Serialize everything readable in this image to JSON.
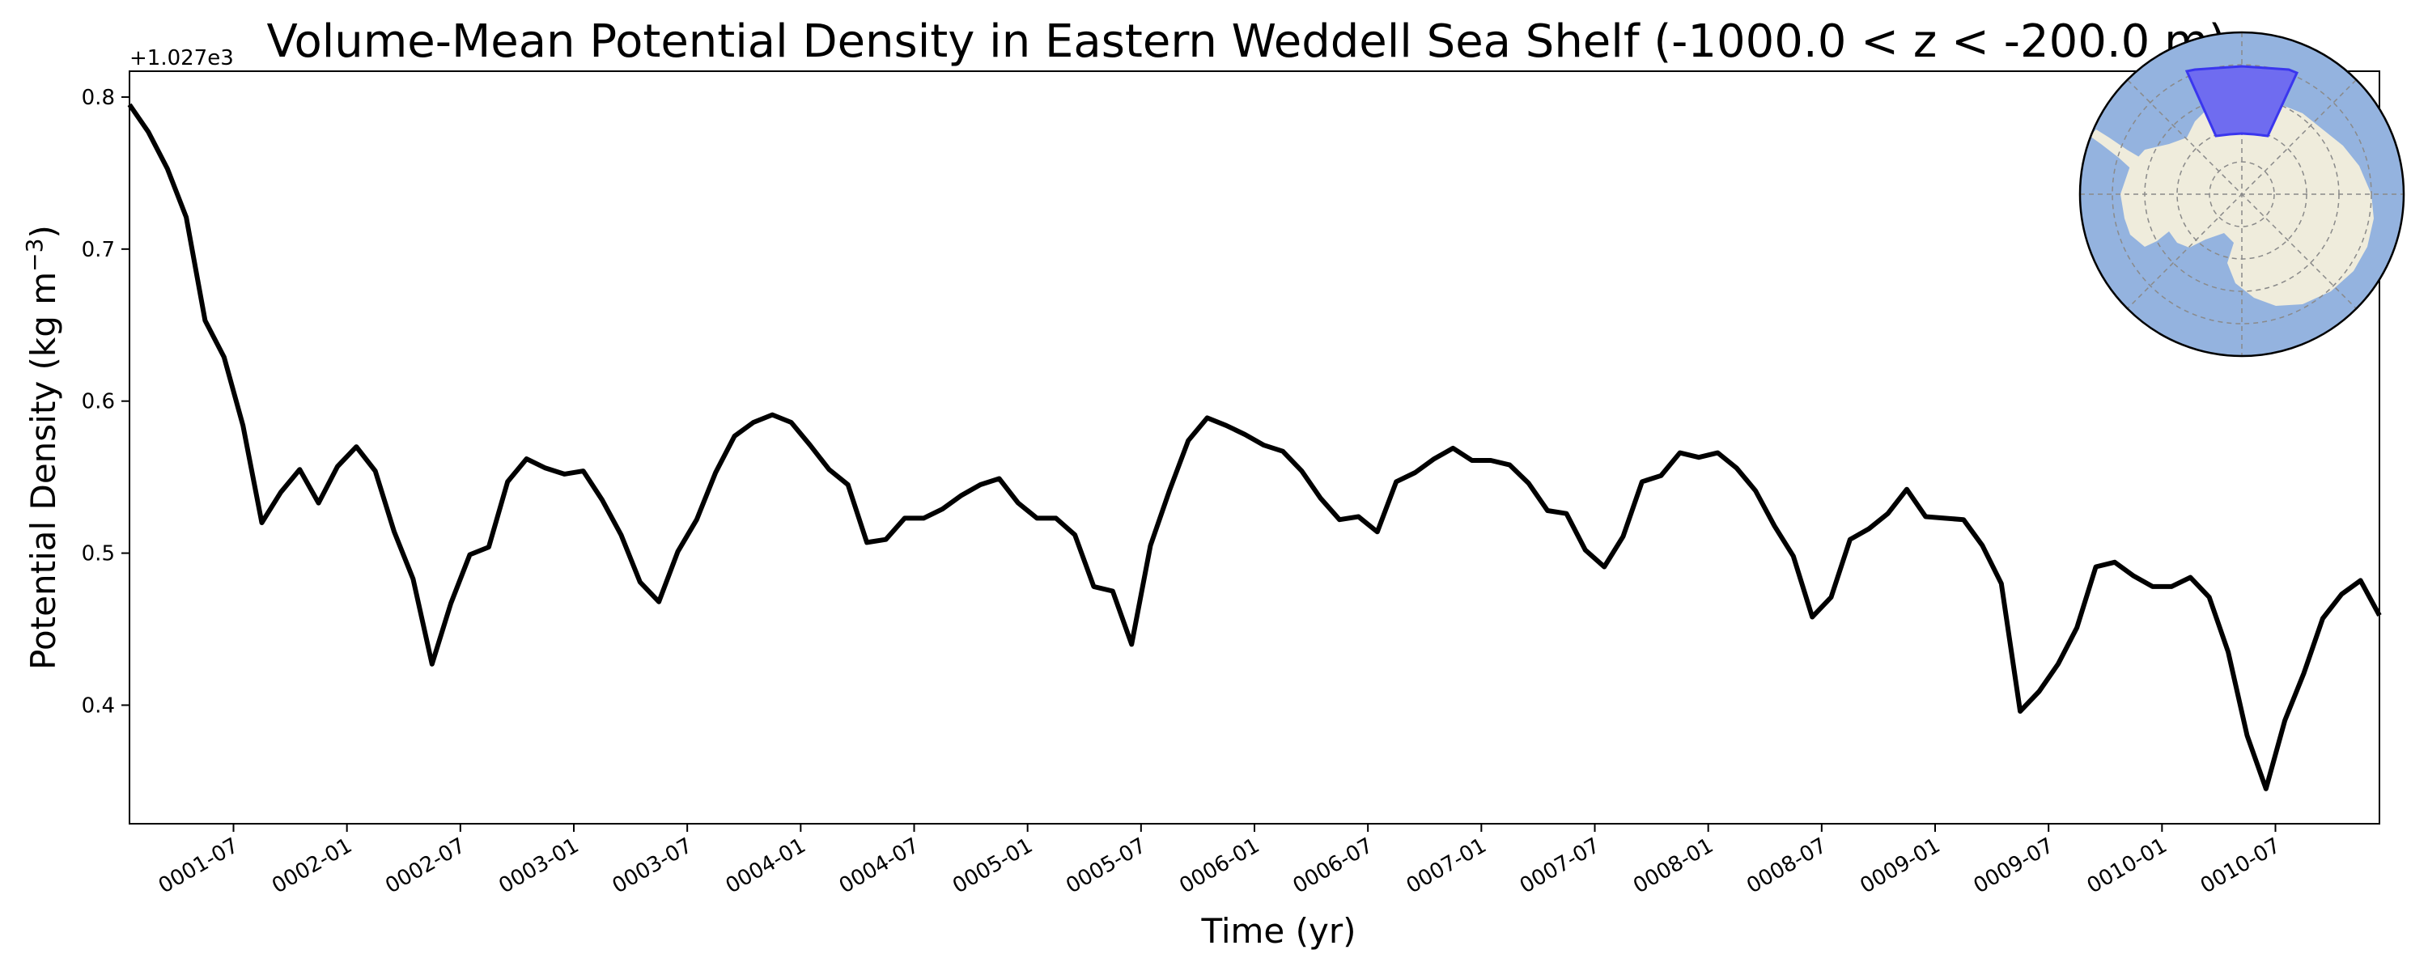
{
  "chart_data": {
    "type": "line",
    "title": "Volume-Mean Potential Density in Eastern Weddell Sea Shelf (-1000.0 < z < -200.0 m)",
    "xlabel": "Time (yr)",
    "ylabel": "Potential Density (kg m",
    "ylabel_sup": "−3",
    "ylabel_close": ")",
    "y_offset_label": "+1.027e3",
    "ylim": [
      0.322,
      0.817
    ],
    "y_ticks": [
      0.4,
      0.5,
      0.6,
      0.7,
      0.8
    ],
    "y_tick_labels": [
      "0.4",
      "0.5",
      "0.6",
      "0.7",
      "0.8"
    ],
    "x_range_months": [
      0.0,
      119.0
    ],
    "x_ticks": [
      5.5,
      11.5,
      17.5,
      23.5,
      29.5,
      35.5,
      41.5,
      47.5,
      53.5,
      59.5,
      65.5,
      71.5,
      77.5,
      83.5,
      89.5,
      95.5,
      101.5,
      107.5,
      113.5
    ],
    "x_tick_labels": [
      "0001-07",
      "0002-01",
      "0002-07",
      "0003-01",
      "0003-07",
      "0004-01",
      "0004-07",
      "0005-01",
      "0005-07",
      "0006-01",
      "0006-07",
      "0007-01",
      "0007-07",
      "0008-01",
      "0008-07",
      "0009-01",
      "0009-07",
      "0010-01",
      "0010-07"
    ],
    "grid": false,
    "legend": "none",
    "series": [
      {
        "color": "#000000",
        "values": [
          0.795,
          0.777,
          0.753,
          0.721,
          0.653,
          0.629,
          0.584,
          0.52,
          0.54,
          0.555,
          0.533,
          0.557,
          0.57,
          0.554,
          0.514,
          0.483,
          0.427,
          0.467,
          0.499,
          0.504,
          0.547,
          0.562,
          0.556,
          0.552,
          0.554,
          0.535,
          0.512,
          0.481,
          0.468,
          0.501,
          0.522,
          0.553,
          0.577,
          0.586,
          0.591,
          0.586,
          0.571,
          0.555,
          0.545,
          0.507,
          0.509,
          0.523,
          0.523,
          0.529,
          0.538,
          0.545,
          0.549,
          0.533,
          0.523,
          0.523,
          0.512,
          0.478,
          0.475,
          0.44,
          0.505,
          0.541,
          0.574,
          0.589,
          0.584,
          0.578,
          0.571,
          0.567,
          0.554,
          0.536,
          0.522,
          0.524,
          0.514,
          0.547,
          0.553,
          0.562,
          0.569,
          0.561,
          0.561,
          0.558,
          0.546,
          0.528,
          0.526,
          0.502,
          0.491,
          0.511,
          0.547,
          0.551,
          0.566,
          0.563,
          0.566,
          0.556,
          0.541,
          0.518,
          0.498,
          0.458,
          0.471,
          0.509,
          0.516,
          0.526,
          0.542,
          0.524,
          0.523,
          0.522,
          0.505,
          0.48,
          0.396,
          0.409,
          0.427,
          0.451,
          0.491,
          0.494,
          0.485,
          0.478,
          0.478,
          0.484,
          0.471,
          0.435,
          0.38,
          0.345,
          0.39,
          0.421,
          0.457,
          0.473,
          0.482,
          0.459
        ]
      }
    ]
  },
  "inset_map": {
    "ocean_color": "#94b3df",
    "land_color": "#efecdc",
    "region_color": "#6f6cf0",
    "region_edge": "#3a36ee"
  }
}
